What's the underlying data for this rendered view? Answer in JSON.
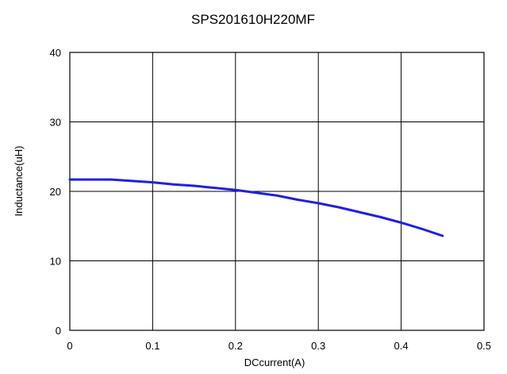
{
  "chart_data": {
    "type": "line",
    "title": "SPS201610H220MF",
    "xlabel": "DCcurrent(A)",
    "ylabel": "Inductance(uH)",
    "xlim": [
      0,
      0.5
    ],
    "ylim": [
      0,
      40
    ],
    "x_ticks": [
      "0",
      "0.1",
      "0.2",
      "0.3",
      "0.4",
      "0.5"
    ],
    "y_ticks": [
      "0",
      "10",
      "20",
      "30",
      "40"
    ],
    "grid": true,
    "series": [
      {
        "color": "#1f1fe6",
        "x": [
          0.0,
          0.025,
          0.05,
          0.075,
          0.1,
          0.125,
          0.15,
          0.175,
          0.2,
          0.225,
          0.25,
          0.275,
          0.3,
          0.325,
          0.35,
          0.375,
          0.4,
          0.425,
          0.45
        ],
        "y": [
          21.7,
          21.7,
          21.7,
          21.5,
          21.3,
          21.0,
          20.8,
          20.5,
          20.2,
          19.8,
          19.4,
          18.8,
          18.3,
          17.7,
          17.0,
          16.3,
          15.5,
          14.6,
          13.6
        ]
      }
    ]
  }
}
